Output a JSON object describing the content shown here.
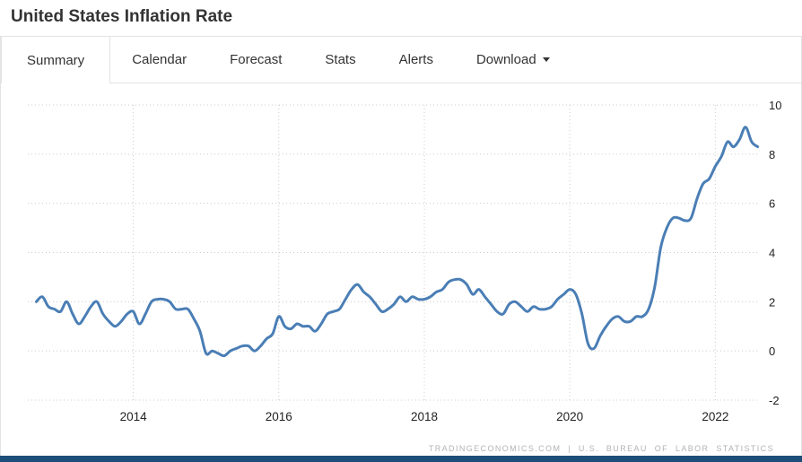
{
  "header": {
    "title": "United States Inflation Rate"
  },
  "tabs": [
    {
      "label": "Summary",
      "active": true
    },
    {
      "label": "Calendar",
      "active": false
    },
    {
      "label": "Forecast",
      "active": false
    },
    {
      "label": "Stats",
      "active": false
    },
    {
      "label": "Alerts",
      "active": false
    },
    {
      "label": "Download",
      "active": false,
      "has_dropdown": true
    }
  ],
  "chart_data": {
    "type": "line",
    "title": "United States Inflation Rate",
    "unit": "percent",
    "frequency": "monthly",
    "x_start": "2012-09",
    "series": [
      {
        "name": "Inflation Rate",
        "values": [
          2.0,
          2.2,
          1.8,
          1.7,
          1.6,
          2.0,
          1.5,
          1.1,
          1.4,
          1.8,
          2.0,
          1.5,
          1.2,
          1.0,
          1.2,
          1.5,
          1.6,
          1.1,
          1.5,
          2.0,
          2.1,
          2.1,
          2.0,
          1.7,
          1.7,
          1.7,
          1.3,
          0.8,
          -0.1,
          0.0,
          -0.1,
          -0.2,
          0.0,
          0.1,
          0.2,
          0.2,
          0.0,
          0.2,
          0.5,
          0.7,
          1.4,
          1.0,
          0.9,
          1.1,
          1.0,
          1.0,
          0.8,
          1.1,
          1.5,
          1.6,
          1.7,
          2.1,
          2.5,
          2.7,
          2.4,
          2.2,
          1.9,
          1.6,
          1.7,
          1.9,
          2.2,
          2.0,
          2.2,
          2.1,
          2.1,
          2.2,
          2.4,
          2.5,
          2.8,
          2.9,
          2.9,
          2.7,
          2.3,
          2.5,
          2.2,
          1.9,
          1.6,
          1.5,
          1.9,
          2.0,
          1.8,
          1.6,
          1.8,
          1.7,
          1.7,
          1.8,
          2.1,
          2.3,
          2.5,
          2.3,
          1.5,
          0.3,
          0.1,
          0.6,
          1.0,
          1.3,
          1.4,
          1.2,
          1.2,
          1.4,
          1.4,
          1.7,
          2.6,
          4.2,
          5.0,
          5.4,
          5.4,
          5.3,
          5.4,
          6.2,
          6.8,
          7.0,
          7.5,
          7.9,
          8.5,
          8.3,
          8.6,
          9.1,
          8.5,
          8.3
        ]
      }
    ],
    "x_ticks": [
      "2014",
      "2016",
      "2018",
      "2020",
      "2022"
    ],
    "y_ticks": [
      10,
      8,
      6,
      4,
      2,
      0,
      -2
    ],
    "ylim": [
      -2,
      10
    ],
    "xlim": [
      2012.55,
      2022.6
    ],
    "grid": "dotted",
    "legend": "none",
    "line_color": "#4a7eb5",
    "grid_color": "#cccccc",
    "attribution": "TRADINGECONOMICS.COM | U.S. BUREAU OF LABOR STATISTICS"
  },
  "colors": {
    "footer_bar": "#1d4e79",
    "border": "#e3e3e3",
    "title_text": "#333333",
    "attribution_text": "#b3b3b3"
  }
}
